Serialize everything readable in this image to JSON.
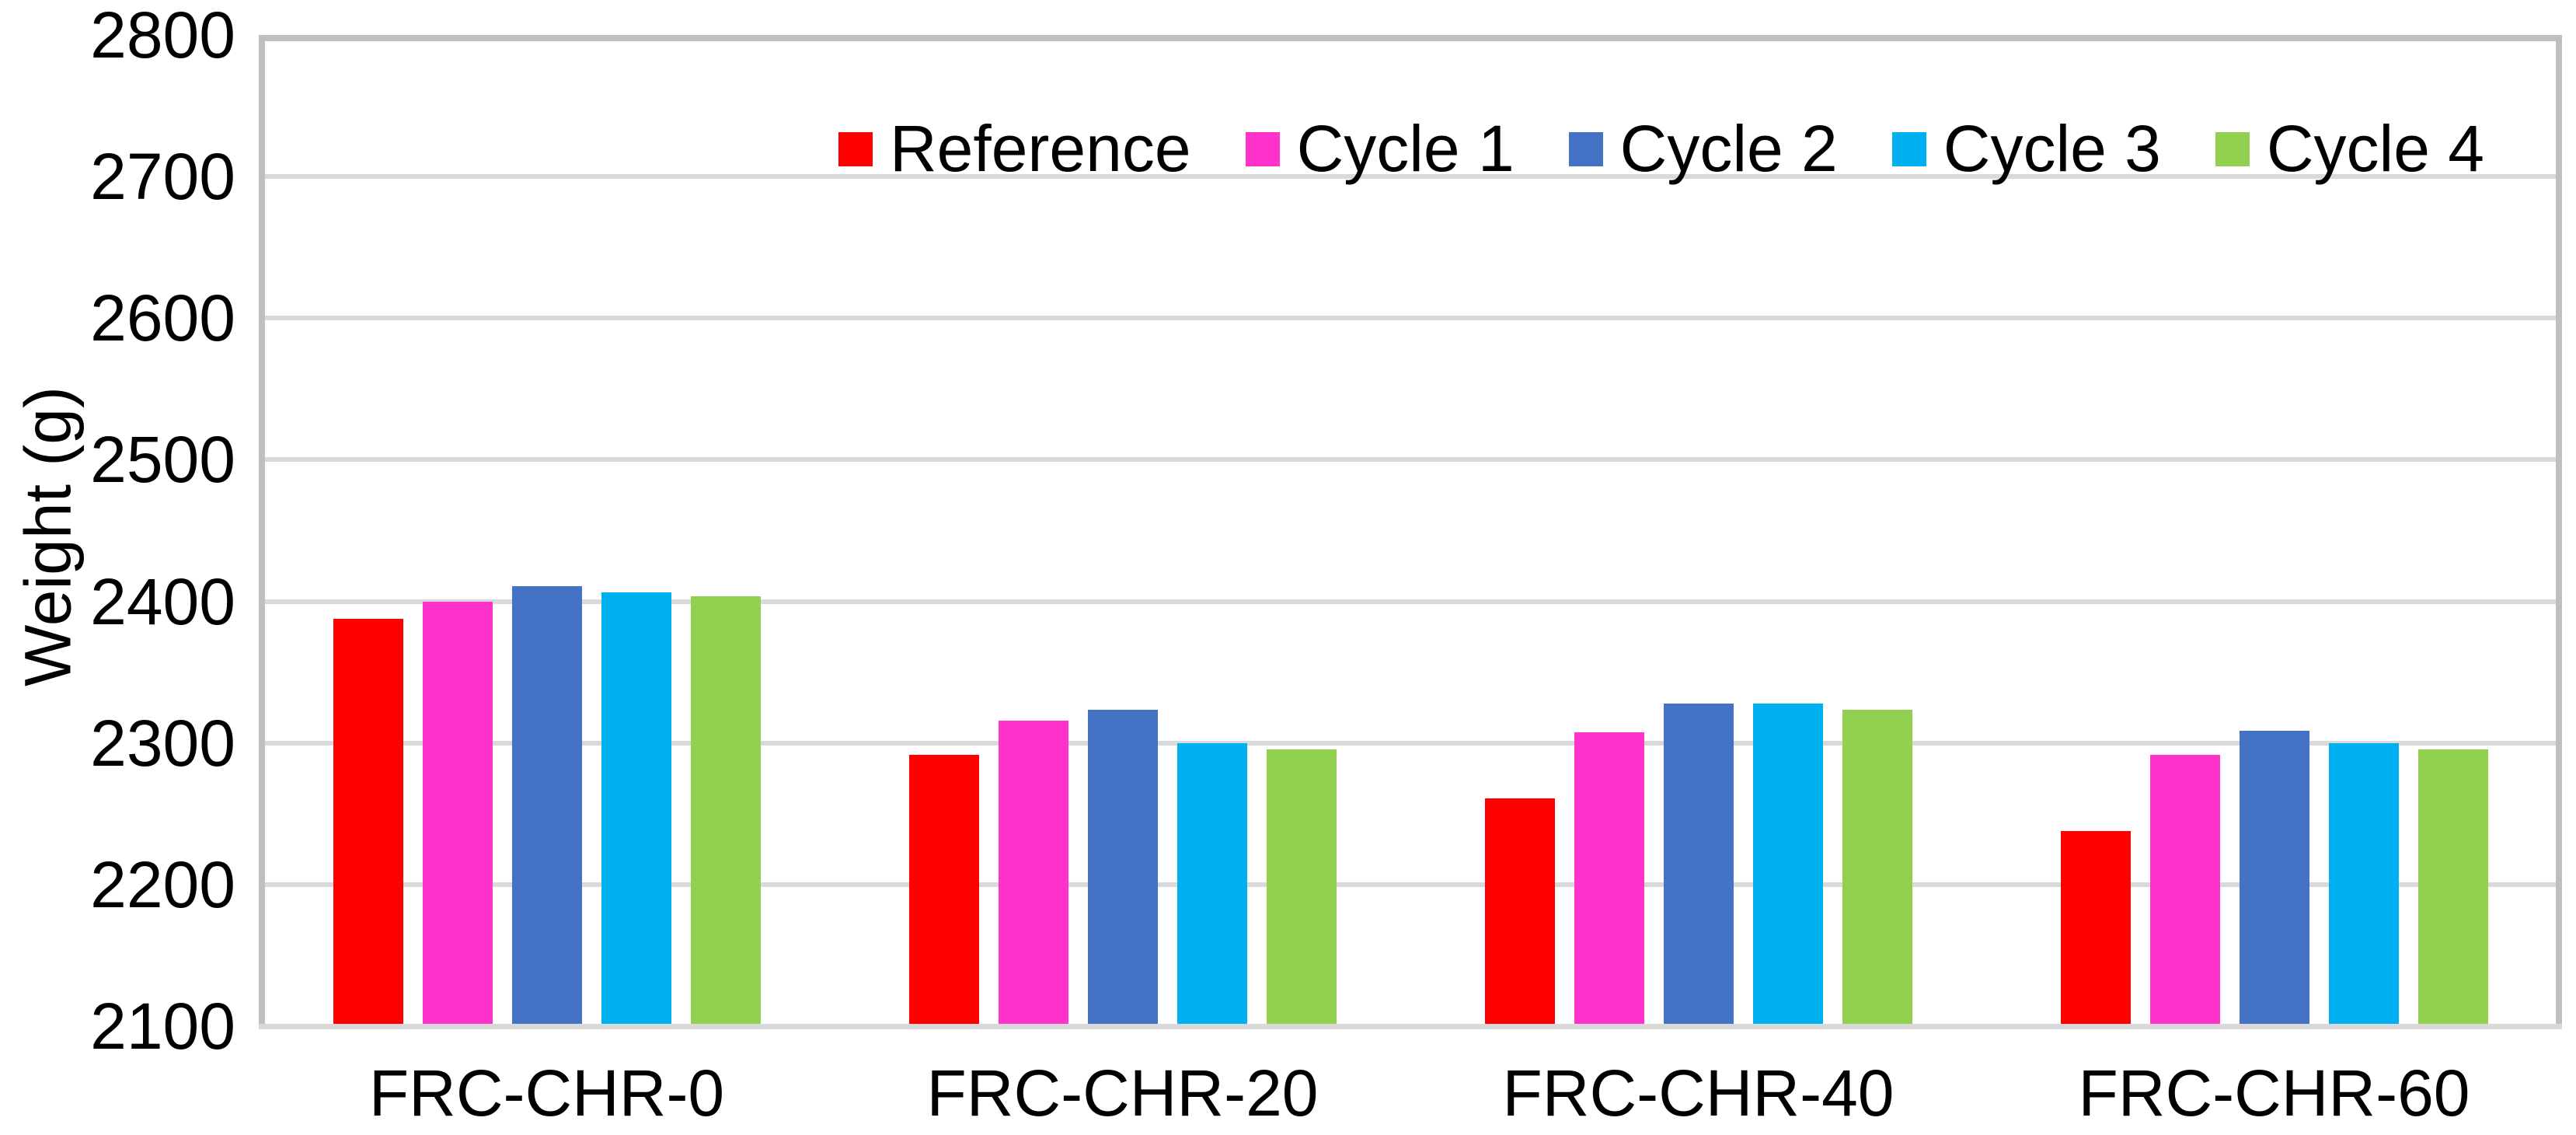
{
  "chart_data": {
    "type": "bar",
    "title": "",
    "xlabel": "",
    "ylabel": "Weight (g)",
    "ylim": [
      2100,
      2800
    ],
    "ytick_step": 100,
    "ytick_labels": [
      "2100",
      "2200",
      "2300",
      "2400",
      "2500",
      "2600",
      "2700",
      "2800"
    ],
    "grid": true,
    "legend_position": "top-center",
    "categories": [
      "FRC-CHR-0",
      "FRC-CHR-20",
      "FRC-CHR-40",
      "FRC-CHR-60"
    ],
    "series": [
      {
        "name": "Reference",
        "color": "#FF0000",
        "values": [
          2392,
          2296,
          2265,
          2242
        ]
      },
      {
        "name": "Cycle 1",
        "color": "#FF33CC",
        "values": [
          2404,
          2320,
          2312,
          2296
        ]
      },
      {
        "name": "Cycle 2",
        "color": "#4472C4",
        "values": [
          2415,
          2328,
          2332,
          2313
        ]
      },
      {
        "name": "Cycle 3",
        "color": "#00B0F0",
        "values": [
          2411,
          2304,
          2332,
          2304
        ]
      },
      {
        "name": "Cycle 4",
        "color": "#92D050",
        "values": [
          2408,
          2300,
          2328,
          2300
        ]
      }
    ],
    "style_colors": {
      "gridline": "#D9D9D9",
      "plot_border": "#BFBFBF",
      "axis_text": "#000000",
      "background": "#FFFFFF"
    }
  }
}
